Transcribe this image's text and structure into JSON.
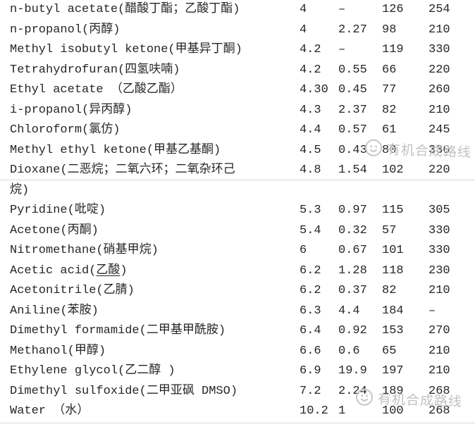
{
  "colors": {
    "background": "#ffffff",
    "text": "#262626",
    "divider": "#d9d9d9",
    "watermark": "#c2c2c2"
  },
  "watermark": {
    "text": "有机合成路线"
  },
  "table": {
    "columns": [
      "solvent_name",
      "polarity",
      "viscosity",
      "boiling_point",
      "uv_cutoff"
    ],
    "rows": [
      {
        "name": "n-butyl acetate(醋酸丁酯；乙酸丁酯)",
        "c1": "4",
        "c2": "–",
        "c3": "126",
        "c4": "254"
      },
      {
        "name": "n-propanol(丙醇)",
        "c1": "4",
        "c2": "2.27",
        "c3": "98",
        "c4": "210"
      },
      {
        "name": "Methyl isobutyl ketone(甲基异丁酮)",
        "c1": "4.2",
        "c2": "–",
        "c3": "119",
        "c4": "330"
      },
      {
        "name": "Tetrahydrofuran(四氢呋喃)",
        "c1": "4.2",
        "c2": "0.55",
        "c3": "66",
        "c4": "220"
      },
      {
        "name": "Ethyl acetate （乙酸乙酯）",
        "c1": "4.30",
        "c2": "0.45",
        "c3": "77",
        "c4": "260"
      },
      {
        "name": "i-propanol(异丙醇)",
        "c1": "4.3",
        "c2": "2.37",
        "c3": "82",
        "c4": "210"
      },
      {
        "name": "Chloroform(氯仿)",
        "c1": "4.4",
        "c2": "0.57",
        "c3": "61",
        "c4": "245"
      },
      {
        "name": "Methyl ethyl ketone(甲基乙基酮)",
        "c1": "4.5",
        "c2": "0.43",
        "c3": "80",
        "c4": "330"
      },
      {
        "name": "Dioxane(二恶烷；二氧六环；二氧杂环己",
        "c1": "4.8",
        "c2": "1.54",
        "c3": "102",
        "c4": "220"
      },
      {
        "name": "烷)",
        "c1": "",
        "c2": "",
        "c3": "",
        "c4": ""
      },
      {
        "name": "Pyridine(吡啶)",
        "c1": "5.3",
        "c2": "0.97",
        "c3": "115",
        "c4": "305"
      },
      {
        "name": "Acetone(丙酮)",
        "c1": "5.4",
        "c2": "0.32",
        "c3": "57",
        "c4": "330"
      },
      {
        "name": "Nitromethane(硝基甲烷)",
        "c1": "6",
        "c2": "0.67",
        "c3": "101",
        "c4": "330"
      },
      {
        "name_pre": "Acetic acid(",
        "name_u": "乙酸",
        "name_post": ")",
        "c1": "6.2",
        "c2": "1.28",
        "c3": "118",
        "c4": "230"
      },
      {
        "name": "Acetonitrile(乙腈)",
        "c1": "6.2",
        "c2": "0.37",
        "c3": "82",
        "c4": "210"
      },
      {
        "name": "Aniline(苯胺)",
        "c1": "6.3",
        "c2": "4.4",
        "c3": "184",
        "c4": "–"
      },
      {
        "name": "Dimethyl formamide(二甲基甲酰胺)",
        "c1": "6.4",
        "c2": "0.92",
        "c3": "153",
        "c4": "270"
      },
      {
        "name": "Methanol(甲醇)",
        "c1": "6.6",
        "c2": "0.6",
        "c3": "65",
        "c4": "210"
      },
      {
        "name": "Ethylene glycol(乙二醇 )",
        "c1": "6.9",
        "c2": "19.9",
        "c3": "197",
        "c4": "210"
      },
      {
        "name": "Dimethyl sulfoxide(二甲亚砜 DMSO)",
        "c1": "7.2",
        "c2": "2.24",
        "c3": "189",
        "c4": "268"
      },
      {
        "name": "Water （水）",
        "c1": "10.2",
        "c2": "1",
        "c3": "100",
        "c4": "268"
      }
    ]
  }
}
